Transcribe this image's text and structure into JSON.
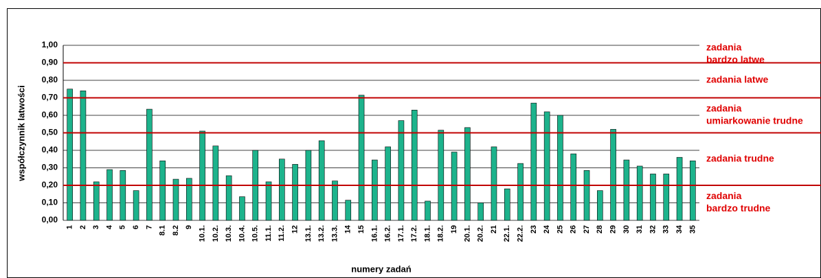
{
  "chart_data": {
    "type": "bar",
    "y_label": "współczynnik latwości",
    "x_label": "numery zadań",
    "categories": [
      "1",
      "2",
      "3",
      "4",
      "5",
      "6",
      "7",
      "8.1",
      "8.2",
      "9",
      "10.1.",
      "10.2.",
      "10.3.",
      "10.4.",
      "10.5.",
      "11.1.",
      "11.2.",
      "12",
      "13.1.",
      "13.2.",
      "13.3.",
      "14",
      "15",
      "16.1.",
      "16.2.",
      "17.1.",
      "17.2.",
      "18.1.",
      "18.2.",
      "19",
      "20.1.",
      "20.2.",
      "21",
      "22.1.",
      "22.2.",
      "23",
      "24",
      "25",
      "26",
      "27",
      "28",
      "29",
      "30",
      "31",
      "32",
      "33",
      "34",
      "35"
    ],
    "values": [
      0.75,
      0.74,
      0.22,
      0.29,
      0.285,
      0.17,
      0.635,
      0.34,
      0.235,
      0.24,
      0.51,
      0.425,
      0.255,
      0.135,
      0.4,
      0.22,
      0.35,
      0.32,
      0.4,
      0.455,
      0.225,
      0.115,
      0.715,
      0.345,
      0.42,
      0.57,
      0.63,
      0.11,
      0.515,
      0.39,
      0.53,
      0.1,
      0.42,
      0.18,
      0.325,
      0.67,
      0.62,
      0.6,
      0.38,
      0.285,
      0.17,
      0.52,
      0.345,
      0.31,
      0.265,
      0.265,
      0.36,
      0.34
    ],
    "color": "#1db38c",
    "ylim": [
      0,
      1
    ],
    "yticks": [
      {
        "value": 0,
        "label": "0,00"
      },
      {
        "value": 0.1,
        "label": "0,10"
      },
      {
        "value": 0.2,
        "label": "0,20"
      },
      {
        "value": 0.3,
        "label": "0,30"
      },
      {
        "value": 0.4,
        "label": "0,40"
      },
      {
        "value": 0.5,
        "label": "0,50"
      },
      {
        "value": 0.6,
        "label": "0,60"
      },
      {
        "value": 0.7,
        "label": "0,70"
      },
      {
        "value": 0.8,
        "label": "0,80"
      },
      {
        "value": 0.9,
        "label": "0,90"
      },
      {
        "value": 1,
        "label": "1,00"
      }
    ],
    "grid": true,
    "threshold_color": "#c00000",
    "zones": [
      {
        "from": 0.9,
        "to": 1,
        "label": [
          "zadania",
          "bardzo latwe"
        ]
      },
      {
        "from": 0.7,
        "to": 0.9,
        "label": [
          "zadania latwe"
        ]
      },
      {
        "from": 0.5,
        "to": 0.7,
        "label": [
          "zadania",
          "umiarkowanie trudne"
        ]
      },
      {
        "from": 0.2,
        "to": 0.5,
        "label": [
          "zadania trudne"
        ]
      },
      {
        "from": 0,
        "to": 0.2,
        "label": [
          "zadania",
          "bardzo trudne"
        ]
      }
    ]
  }
}
